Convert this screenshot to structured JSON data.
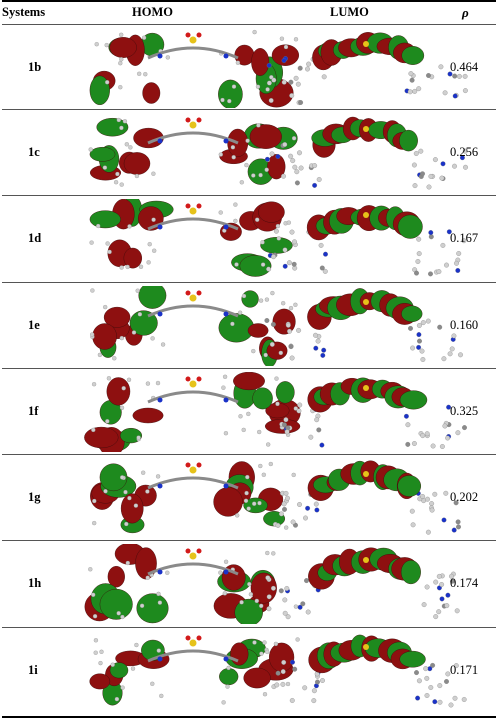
{
  "header": {
    "systems": "Systems",
    "homo": "HOMO",
    "lumo": "LUMO",
    "rho": "ρ"
  },
  "rows": [
    {
      "system": "1b",
      "rho": "0.464"
    },
    {
      "system": "1c",
      "rho": "0.256"
    },
    {
      "system": "1d",
      "rho": "0.167"
    },
    {
      "system": "1e",
      "rho": "0.160"
    },
    {
      "system": "1f",
      "rho": "0.325"
    },
    {
      "system": "1g",
      "rho": "0.202"
    },
    {
      "system": "1h",
      "rho": "0.174"
    },
    {
      "system": "1i",
      "rho": "0.171"
    }
  ],
  "colors": {
    "lobe_red": "#8e1010",
    "lobe_green": "#1e8a1e",
    "hydrogen": "#cfcfcf",
    "carbon": "#8a8a8a",
    "nitrogen": "#1a32c8",
    "sulfur": "#e6c21a",
    "oxygen": "#d21a1a"
  }
}
